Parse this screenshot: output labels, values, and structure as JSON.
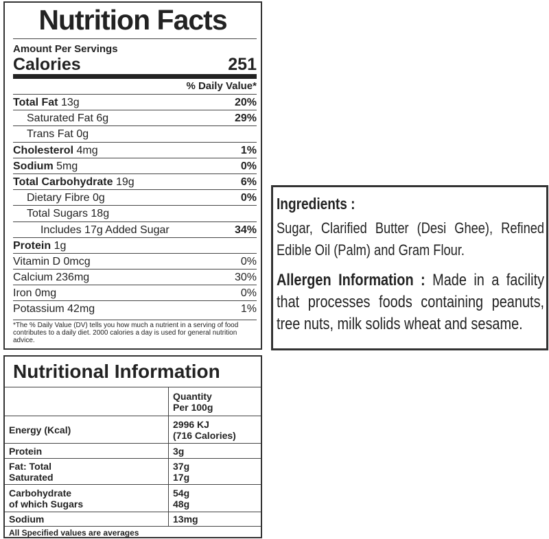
{
  "nutrition_facts": {
    "title": "Nutrition Facts",
    "serving_label": "Amount Per Servings",
    "calories_label": "Calories",
    "calories_value": "251",
    "dv_header": "% Daily Value*",
    "rows": [
      {
        "label": "Total Fat",
        "amount": "13g",
        "dv": "20%"
      },
      {
        "label": "Saturated Fat",
        "amount": "6g",
        "dv": "29%"
      },
      {
        "label": "Trans Fat",
        "amount": "0g"
      },
      {
        "label": "Cholesterol",
        "amount": "4mg",
        "dv": "1%"
      },
      {
        "label": "Sodium",
        "amount": "5mg",
        "dv": "0%"
      },
      {
        "label": "Total Carbohydrate",
        "amount": "19g",
        "dv": "6%"
      },
      {
        "label": "Dietary Fibre",
        "amount": "0g",
        "dv": "0%"
      },
      {
        "label": "Total Sugars",
        "amount": "18g"
      },
      {
        "label": "Includes 17g Added Sugar",
        "dv": "34%"
      },
      {
        "label": "Protein",
        "amount": "1g"
      }
    ],
    "vitamins": [
      {
        "label": "Vitamin D",
        "amount": "0mcg",
        "dv": "0%"
      },
      {
        "label": "Calcium",
        "amount": "236mg",
        "dv": "30%"
      },
      {
        "label": "Iron",
        "amount": "0mg",
        "dv": "0%"
      },
      {
        "label": "Potassium",
        "amount": "42mg",
        "dv": "1%"
      }
    ],
    "footnote": "*The % Daily Value (DV) tells you how much a nutrient in a serving of food contributes to a daily diet. 2000 calories a day is used for general nutrition advice."
  },
  "nutritional_information": {
    "title": "Nutritional Information",
    "header": [
      "Quantity",
      "Per 100g"
    ],
    "rows": [
      {
        "labels": [
          "Energy (Kcal)"
        ],
        "values": [
          "2996 KJ",
          "(716 Calories)"
        ]
      },
      {
        "labels": [
          "Protein"
        ],
        "values": [
          "3g"
        ]
      },
      {
        "labels": [
          "Fat: Total",
          "Saturated"
        ],
        "values": [
          "37g",
          "17g"
        ]
      },
      {
        "labels": [
          "Carbohydrate",
          "of which Sugars"
        ],
        "values": [
          "54g",
          "48g"
        ]
      },
      {
        "labels": [
          "Sodium"
        ],
        "values": [
          "13mg"
        ]
      }
    ],
    "footnote": "All Specified values are averages"
  },
  "ingredients": {
    "heading": "Ingredients :",
    "text": "Sugar, Clarified Butter (Desi Ghee), Refined Edible Oil (Palm) and Gram Flour.",
    "allergen_heading": "Allergen Information :",
    "allergen_text": "Made in a facility that processes foods containing peanuts, tree nuts, milk solids wheat and sesame."
  }
}
